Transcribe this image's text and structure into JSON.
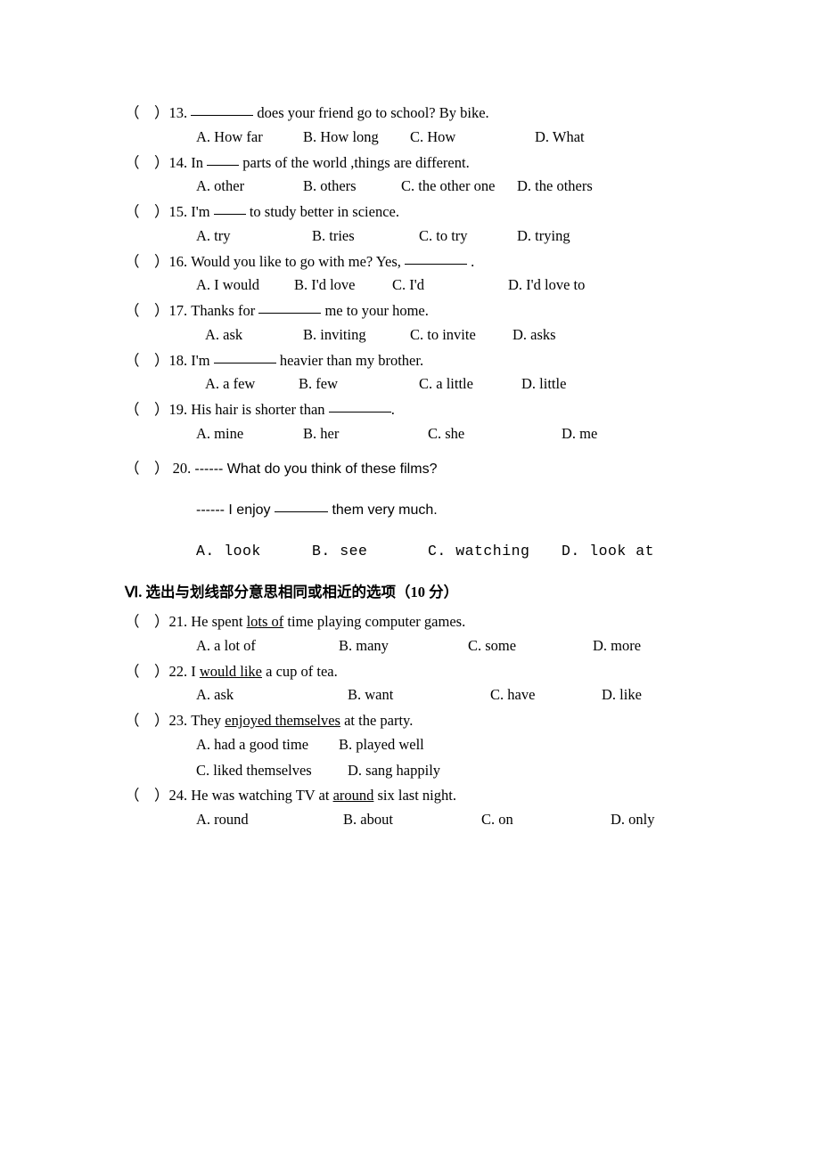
{
  "paren_open": "（",
  "paren_space": "　",
  "paren_close": "）",
  "questions": [
    {
      "num": "13.",
      "pre": "",
      "post": " does your friend go to school? By bike.",
      "blank": "long",
      "opts": [
        {
          "l": "A. How far",
          "w": 120
        },
        {
          "l": "B. How long",
          "w": 120
        },
        {
          "l": "C. How",
          "w": 140
        },
        {
          "l": "D. What",
          "w": 0
        }
      ]
    },
    {
      "num": "14.",
      "pre": "In  ",
      "post": "  parts of the world ,things are different.",
      "blank": "short",
      "opts": [
        {
          "l": "A. other",
          "w": 120
        },
        {
          "l": "B. others",
          "w": 110
        },
        {
          "l": "C. the other one",
          "w": 130
        },
        {
          "l": "D. the others",
          "w": 0
        }
      ]
    },
    {
      "num": "15.",
      "pre": "I'm  ",
      "post": "  to study better in science.",
      "blank": "short",
      "opts": [
        {
          "l": "A. try",
          "w": 130
        },
        {
          "l": "B. tries",
          "w": 120
        },
        {
          "l": "C. to try",
          "w": 110
        },
        {
          "l": "D. trying",
          "w": 0
        }
      ]
    },
    {
      "num": "16.",
      "pre": "Would you like to go with me? Yes,  ",
      "post": "  .",
      "blank": "long",
      "opts": [
        {
          "l": "A. I would",
          "w": 110
        },
        {
          "l": "B. I'd love",
          "w": 110
        },
        {
          "l": "C. I'd",
          "w": 130
        },
        {
          "l": "D. I'd love to",
          "w": 0
        }
      ]
    },
    {
      "num": "17.",
      "pre": "Thanks for  ",
      "post": "  me to your home.",
      "blank": "long",
      "opts_pad": 90,
      "opts": [
        {
          "l": "A. ask",
          "w": 110
        },
        {
          "l": "B. inviting",
          "w": 120
        },
        {
          "l": "C. to invite",
          "w": 115
        },
        {
          "l": "D. asks",
          "w": 0
        }
      ]
    },
    {
      "num": "18.",
      "pre": "I'm  ",
      "post": "  heavier than my brother.",
      "blank": "long",
      "opts_pad": 90,
      "opts": [
        {
          "l": "A. a few",
          "w": 105
        },
        {
          "l": "B.   few",
          "w": 135
        },
        {
          "l": "C. a little",
          "w": 115
        },
        {
          "l": "D. little",
          "w": 0
        }
      ]
    },
    {
      "num": "19.",
      "pre": "His hair is shorter than  ",
      "post": ".",
      "blank": "long",
      "opts": [
        {
          "l": "A. mine",
          "w": 120
        },
        {
          "l": "B. her",
          "w": 140
        },
        {
          "l": "C. she",
          "w": 150
        },
        {
          "l": "D.   me",
          "w": 0
        }
      ]
    }
  ],
  "q20": {
    "num": "20.",
    "line1": "------ What do you think of these films?",
    "line2_pre": "------ I enjoy ",
    "line2_post": " them very much.",
    "opts": [
      {
        "l": "A.  look",
        "w": 130
      },
      {
        "l": "B. see",
        "w": 130
      },
      {
        "l": "C. watching",
        "w": 150
      },
      {
        "l": "D. look at",
        "w": 0
      }
    ]
  },
  "section6": {
    "roman": "Ⅵ. ",
    "title": "选出与划线部分意思相同或相近的选项（10 分）"
  },
  "synonym_questions": [
    {
      "num": "21.",
      "pre": "He spent ",
      "under": "lots of",
      "post": "   time   playing computer games.",
      "opts": [
        {
          "l": "A. a lot of",
          "w": 160
        },
        {
          "l": "B. many",
          "w": 145
        },
        {
          "l": "C. some",
          "w": 140
        },
        {
          "l": "D. more",
          "w": 0
        }
      ]
    },
    {
      "num": "22.",
      "pre": "I   ",
      "under": "would like",
      "post": " a cup of tea.",
      "opts": [
        {
          "l": "A. ask",
          "w": 170
        },
        {
          "l": "B. want",
          "w": 160
        },
        {
          "l": "C. have",
          "w": 125
        },
        {
          "l": "D. like",
          "w": 0
        }
      ]
    },
    {
      "num": "23.",
      "pre": "They ",
      "under": "enjoyed themselves",
      "post": " at the party.",
      "opts_rows": [
        [
          {
            "l": "A. had a good time",
            "w": 160
          },
          {
            "l": "B. played well",
            "w": 0
          }
        ],
        [
          {
            "l": "C. liked themselves",
            "w": 170
          },
          {
            "l": "D. sang happily",
            "w": 0
          }
        ]
      ]
    },
    {
      "num": "24.",
      "pre": "He was watching TV at ",
      "under": "around",
      "post": " six last night.",
      "opts": [
        {
          "l": "A. round",
          "w": 165
        },
        {
          "l": "B. about",
          "w": 155
        },
        {
          "l": "C. on",
          "w": 145
        },
        {
          "l": "D. only",
          "w": 0
        }
      ]
    }
  ]
}
